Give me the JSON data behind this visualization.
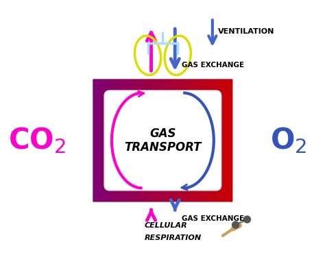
{
  "bg_color": "#ffffff",
  "co2_color": "#ff00cc",
  "o2_color": "#3355bb",
  "magenta": "#ff00cc",
  "blue": "#3355bb",
  "blue_arrow": "#4466cc",
  "yellow": "#eeee00",
  "cyan_light": "#aaddff",
  "purple_left": "#7b0075",
  "red_right": "#cc0000",
  "ventilation_text": "VENTILATION",
  "gas_exchange_text": "GAS EXCHANGE",
  "cellular_text1": "CELLULAR",
  "cellular_text2": "RESPIRATION",
  "center_text1": "GAS",
  "center_text2": "TRANSPORT"
}
